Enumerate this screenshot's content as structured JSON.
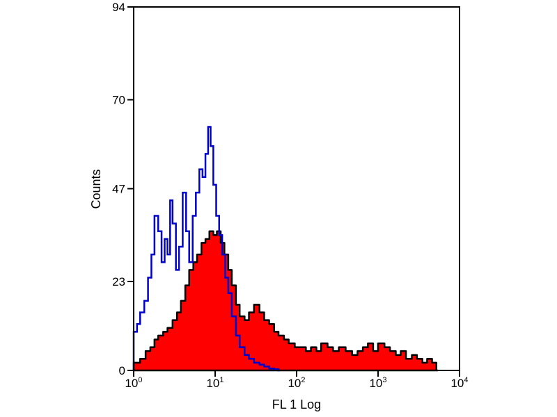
{
  "chart_data": {
    "type": "area",
    "title": "",
    "xlabel": "FL 1 Log",
    "ylabel": "Counts",
    "xscale": "log",
    "xlim": [
      1,
      10000
    ],
    "ylim": [
      0,
      94
    ],
    "grid": false,
    "legend": "none",
    "x_ticks": [
      {
        "value": 1,
        "base": "10",
        "exp": "0"
      },
      {
        "value": 10,
        "base": "10",
        "exp": "1"
      },
      {
        "value": 100,
        "base": "10",
        "exp": "2"
      },
      {
        "value": 1000,
        "base": "10",
        "exp": "3"
      },
      {
        "value": 10000,
        "base": "10",
        "exp": "4"
      }
    ],
    "y_ticks": [
      0,
      23,
      47,
      70,
      94
    ],
    "series": [
      {
        "style": "filled",
        "fill": "#ff0000",
        "stroke": "#000000",
        "x": [
          1,
          1.2,
          1.4,
          1.6,
          1.8,
          2,
          2.3,
          2.6,
          3,
          3.4,
          3.8,
          4.3,
          4.8,
          5.4,
          6,
          6.8,
          7.6,
          8.5,
          9.5,
          10.5,
          11.7,
          13,
          14.5,
          16,
          18,
          20,
          23,
          26,
          30,
          35,
          40,
          46,
          53,
          60,
          70,
          80,
          95,
          110,
          130,
          150,
          175,
          200,
          240,
          280,
          330,
          400,
          480,
          560,
          650,
          750,
          870,
          1000,
          1200,
          1400,
          1650,
          1900,
          2200,
          2600,
          3000,
          3500,
          4000,
          4600,
          5200
        ],
        "y": [
          2,
          3,
          5,
          6,
          8,
          9,
          10,
          11,
          13,
          15,
          18,
          22,
          26,
          28,
          30,
          33,
          34,
          36,
          35,
          36,
          33,
          30,
          26,
          22,
          17,
          14,
          13,
          15,
          17,
          15,
          13,
          12,
          10,
          9,
          8,
          7,
          6,
          6,
          5,
          6,
          5,
          7,
          6,
          5,
          6,
          5,
          4,
          5,
          6,
          7,
          5,
          7,
          6,
          5,
          4,
          5,
          3,
          4,
          3,
          2,
          3,
          2,
          0
        ]
      },
      {
        "style": "outline",
        "stroke": "#0000cc",
        "x": [
          1,
          1.1,
          1.2,
          1.35,
          1.5,
          1.65,
          1.8,
          2,
          2.2,
          2.4,
          2.6,
          2.8,
          3,
          3.3,
          3.6,
          4,
          4.4,
          4.8,
          5.3,
          5.8,
          6.4,
          7,
          7.6,
          8.2,
          8.8,
          9.5,
          10.3,
          11.2,
          12.2,
          13.3,
          14.5,
          16,
          18,
          20,
          23,
          26,
          30,
          35,
          40,
          46,
          53,
          60
        ],
        "y": [
          10,
          12,
          15,
          18,
          24,
          30,
          40,
          36,
          28,
          34,
          30,
          44,
          38,
          26,
          32,
          46,
          36,
          28,
          40,
          46,
          52,
          50,
          56,
          63,
          58,
          48,
          40,
          35,
          30,
          24,
          20,
          14,
          9,
          6,
          4,
          3,
          2,
          1.5,
          1,
          0.5,
          0.3,
          0
        ]
      }
    ]
  }
}
